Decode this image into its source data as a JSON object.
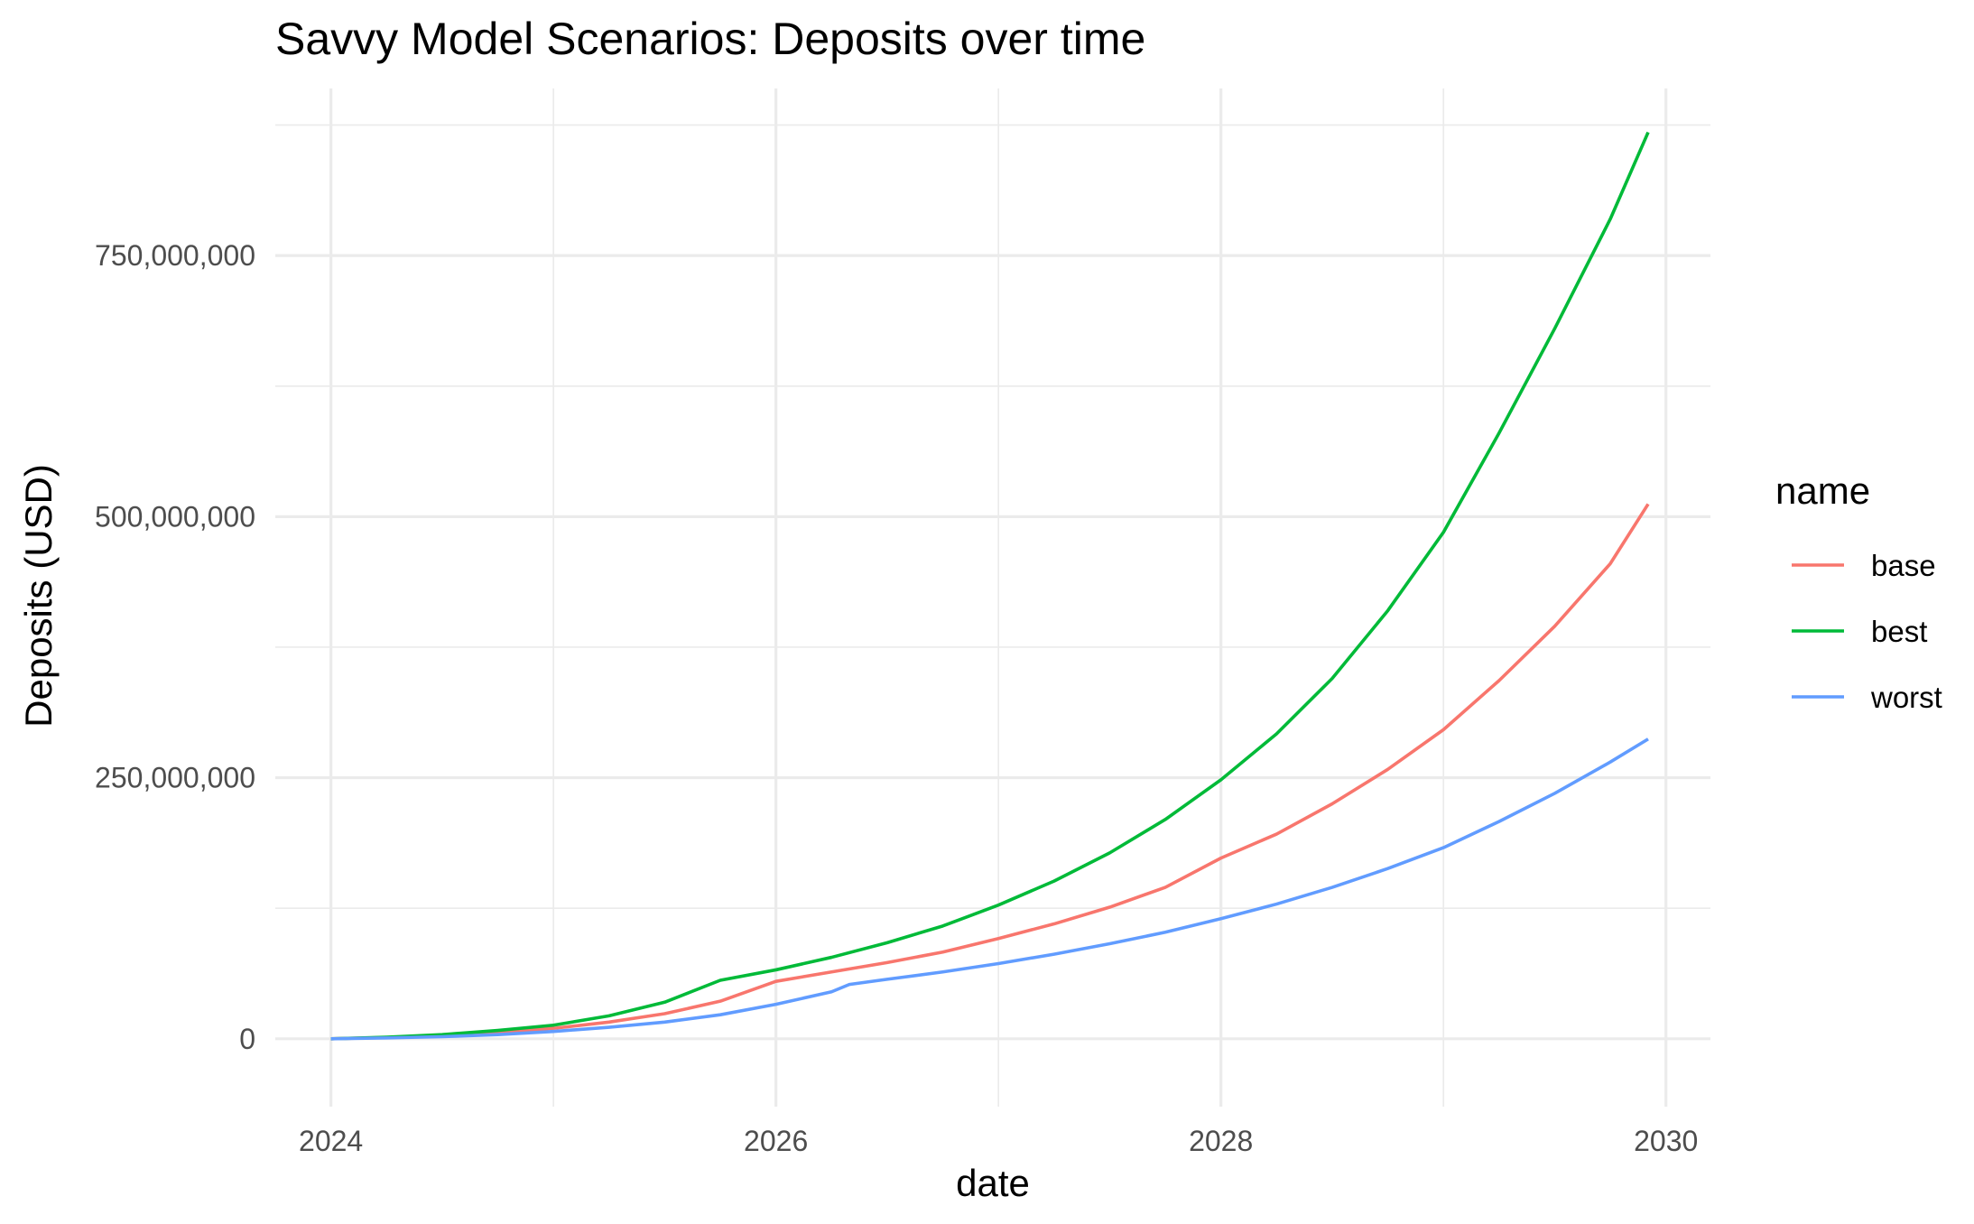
{
  "chart_data": {
    "type": "line",
    "title": "Savvy Model Scenarios: Deposits over time",
    "xlabel": "date",
    "ylabel": "Deposits (USD)",
    "x_unit": "year",
    "xlim": [
      2023.75,
      2030.2
    ],
    "ylim": [
      -65000000,
      910000000
    ],
    "x_ticks": [
      2024,
      2026,
      2028,
      2030
    ],
    "x_tick_labels": [
      "2024",
      "2026",
      "2028",
      "2030"
    ],
    "x_minor_ticks": [
      2025,
      2027,
      2029
    ],
    "y_ticks": [
      0,
      250000000,
      500000000,
      750000000
    ],
    "y_tick_labels": [
      "0",
      "250,000,000",
      "500,000,000",
      "750,000,000"
    ],
    "y_minor_ticks": [
      125000000,
      375000000,
      625000000,
      875000000
    ],
    "grid": true,
    "legend": {
      "title": "name",
      "position": "right"
    },
    "series": [
      {
        "name": "base",
        "color": "#F8766D",
        "points": [
          [
            2024.0,
            0
          ],
          [
            2024.25,
            1200000
          ],
          [
            2024.5,
            3000000
          ],
          [
            2024.75,
            6000000
          ],
          [
            2025.0,
            10000000
          ],
          [
            2025.25,
            16000000
          ],
          [
            2025.5,
            24000000
          ],
          [
            2025.75,
            36000000
          ],
          [
            2026.0,
            55000000
          ],
          [
            2026.25,
            64000000
          ],
          [
            2026.5,
            73000000
          ],
          [
            2026.75,
            83000000
          ],
          [
            2027.0,
            96000000
          ],
          [
            2027.25,
            110000000
          ],
          [
            2027.5,
            126000000
          ],
          [
            2027.75,
            145000000
          ],
          [
            2028.0,
            173000000
          ],
          [
            2028.25,
            196000000
          ],
          [
            2028.5,
            225000000
          ],
          [
            2028.75,
            258000000
          ],
          [
            2029.0,
            296000000
          ],
          [
            2029.25,
            343000000
          ],
          [
            2029.5,
            395000000
          ],
          [
            2029.75,
            455000000
          ],
          [
            2029.92,
            512000000
          ]
        ]
      },
      {
        "name": "best",
        "color": "#00BA38",
        "points": [
          [
            2024.0,
            0
          ],
          [
            2024.25,
            1500000
          ],
          [
            2024.5,
            4000000
          ],
          [
            2024.75,
            8000000
          ],
          [
            2025.0,
            13000000
          ],
          [
            2025.25,
            22000000
          ],
          [
            2025.5,
            35000000
          ],
          [
            2025.75,
            56000000
          ],
          [
            2026.0,
            66000000
          ],
          [
            2026.25,
            78000000
          ],
          [
            2026.5,
            92000000
          ],
          [
            2026.75,
            108000000
          ],
          [
            2027.0,
            128000000
          ],
          [
            2027.25,
            151000000
          ],
          [
            2027.5,
            178000000
          ],
          [
            2027.75,
            210000000
          ],
          [
            2028.0,
            248000000
          ],
          [
            2028.25,
            292000000
          ],
          [
            2028.5,
            345000000
          ],
          [
            2028.75,
            410000000
          ],
          [
            2029.0,
            485000000
          ],
          [
            2029.25,
            580000000
          ],
          [
            2029.5,
            680000000
          ],
          [
            2029.75,
            785000000
          ],
          [
            2029.92,
            868000000
          ]
        ]
      },
      {
        "name": "worst",
        "color": "#619CFF",
        "points": [
          [
            2024.0,
            0
          ],
          [
            2024.25,
            800000
          ],
          [
            2024.5,
            2000000
          ],
          [
            2024.75,
            4000000
          ],
          [
            2025.0,
            7000000
          ],
          [
            2025.25,
            11000000
          ],
          [
            2025.5,
            16000000
          ],
          [
            2025.75,
            23000000
          ],
          [
            2026.0,
            33000000
          ],
          [
            2026.25,
            45000000
          ],
          [
            2026.33,
            52000000
          ],
          [
            2026.5,
            57000000
          ],
          [
            2026.75,
            64000000
          ],
          [
            2027.0,
            72000000
          ],
          [
            2027.25,
            81000000
          ],
          [
            2027.5,
            91000000
          ],
          [
            2027.75,
            102000000
          ],
          [
            2028.0,
            115000000
          ],
          [
            2028.25,
            129000000
          ],
          [
            2028.5,
            145000000
          ],
          [
            2028.75,
            163000000
          ],
          [
            2029.0,
            183000000
          ],
          [
            2029.25,
            208000000
          ],
          [
            2029.5,
            235000000
          ],
          [
            2029.75,
            265000000
          ],
          [
            2029.92,
            287000000
          ]
        ]
      }
    ]
  }
}
